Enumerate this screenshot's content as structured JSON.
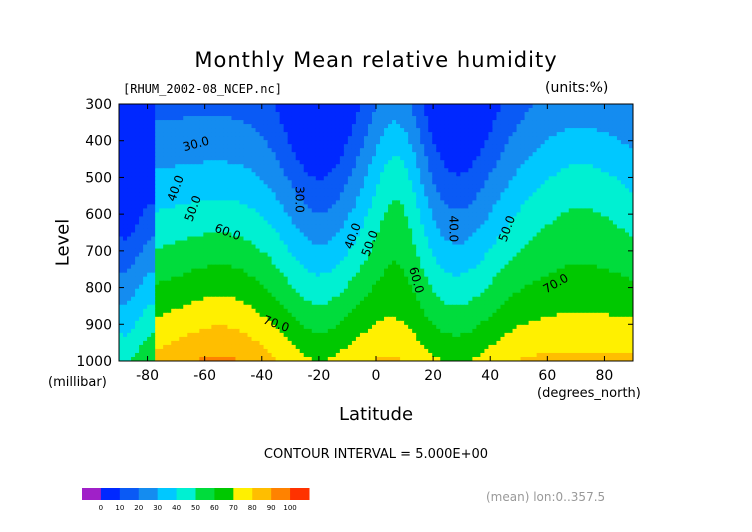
{
  "chart_data": {
    "type": "heatmap",
    "title": "Monthly Mean relative humidity",
    "subtitle_left": "[RHUM_2002-08_NCEP.nc]",
    "subtitle_right": "(units:%)",
    "ylabel": "Level",
    "yunits": "(millibar)",
    "xlabel": "Latitude",
    "xunits": "(degrees_north)",
    "xlim": [
      -90,
      90
    ],
    "ylim": [
      1000,
      300
    ],
    "x_ticks": [
      -80,
      -60,
      -40,
      -20,
      0,
      20,
      40,
      60,
      80
    ],
    "y_ticks": [
      300,
      400,
      500,
      600,
      700,
      800,
      900,
      1000
    ],
    "contour_labels": [
      {
        "text": "30.0",
        "lat": -63,
        "lev": 410,
        "rot": -15
      },
      {
        "text": "40.0",
        "lat": -70,
        "lev": 530,
        "rot": -70
      },
      {
        "text": "50.0",
        "lat": -64,
        "lev": 585,
        "rot": -70
      },
      {
        "text": "60.0",
        "lat": -52,
        "lev": 650,
        "rot": 20
      },
      {
        "text": "30.0",
        "lat": -27,
        "lev": 560,
        "rot": 90
      },
      {
        "text": "40.0",
        "lat": -8,
        "lev": 660,
        "rot": -70
      },
      {
        "text": "50.0",
        "lat": -2,
        "lev": 680,
        "rot": -70
      },
      {
        "text": "60.0",
        "lat": 14,
        "lev": 780,
        "rot": 75
      },
      {
        "text": "70.0",
        "lat": -35,
        "lev": 900,
        "rot": 20
      },
      {
        "text": "40.0",
        "lat": 27,
        "lev": 640,
        "rot": 90
      },
      {
        "text": "50.0",
        "lat": 46,
        "lev": 640,
        "rot": -70
      },
      {
        "text": "70.0",
        "lat": 63,
        "lev": 790,
        "rot": -30
      }
    ],
    "legend": {
      "bounds": [
        "0",
        "10",
        "20",
        "30",
        "40",
        "50",
        "60",
        "70",
        "80",
        "90",
        "100"
      ],
      "colors": [
        "#a020c8",
        "#0028ff",
        "#0a5af5",
        "#148cf0",
        "#00c8ff",
        "#00f0d2",
        "#00dc3c",
        "#00c800",
        "#fff000",
        "#ffbe00",
        "#ff8200",
        "#ff3200"
      ]
    },
    "band_colors": [
      "#8c28b4",
      "#0028ff",
      "#0a5af5",
      "#148cf0",
      "#00c8ff",
      "#00f0d2",
      "#00dc3c",
      "#00c800",
      "#fff000",
      "#ffbe00",
      "#ff8200",
      "#ff3200"
    ]
  },
  "interval_text": "CONTOUR INTERVAL = 5.000E+00",
  "mean_text": "(mean) lon:0..357.5"
}
